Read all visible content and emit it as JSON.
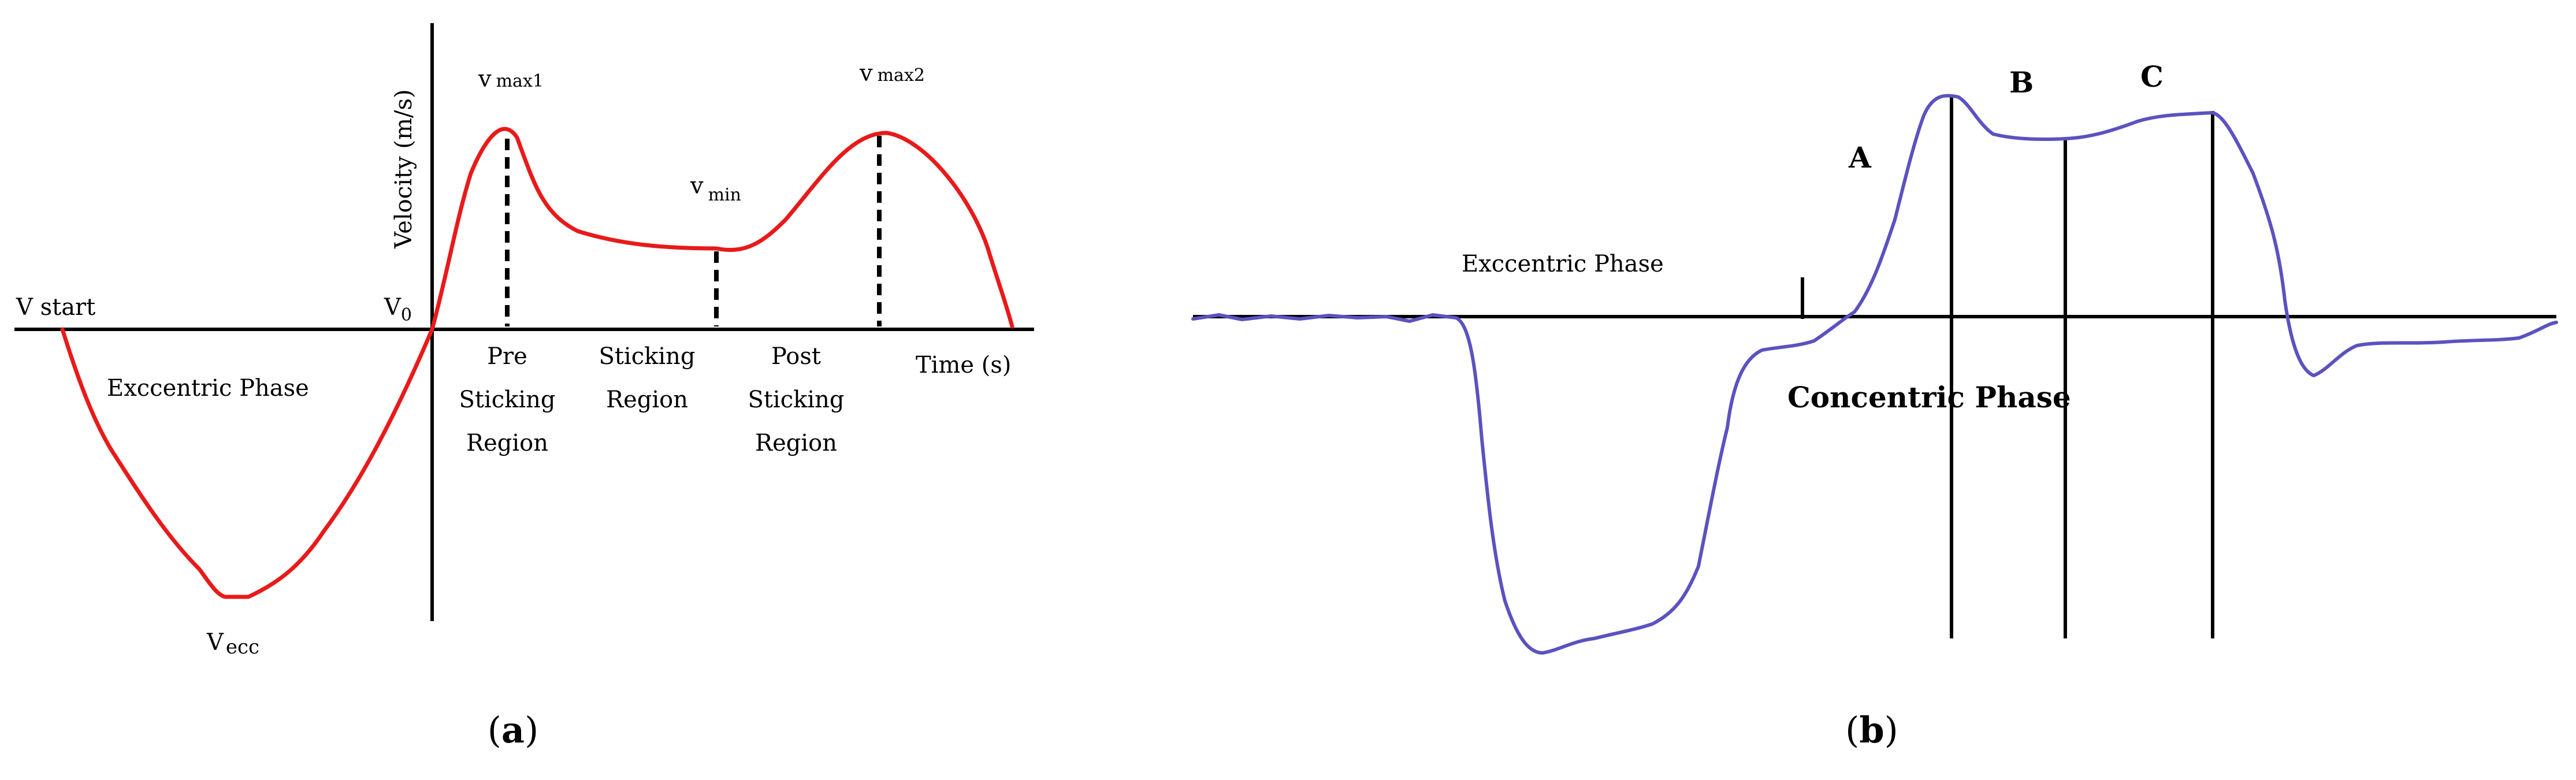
{
  "panel_a": {
    "ylabel": "Velocity (m/s)",
    "xlabel": "Time (s)",
    "v_start": "V start",
    "v0_main": "V",
    "v0_sub": "0",
    "vmax1_main": "v",
    "vmax1_sub": "max1",
    "vmax2_main": "v",
    "vmax2_sub": "max2",
    "vmin_main": "v",
    "vmin_sub": "min",
    "vecc_main": "V",
    "vecc_sub": "ecc",
    "eccentric": "Exccentric Phase",
    "pre": [
      "Pre",
      "Sticking",
      "Region"
    ],
    "sticking": [
      "Sticking",
      "Region"
    ],
    "post": [
      "Post",
      "Sticking",
      "Region"
    ],
    "caption_letter": "a",
    "curve_color": "#e81a1a"
  },
  "panel_b": {
    "eccentric": "Exccentric Phase",
    "concentric": "Concentric Phase",
    "label_a": "A",
    "label_b": "B",
    "label_c": "C",
    "caption_letter": "b",
    "curve_color": "#5b52c0"
  }
}
